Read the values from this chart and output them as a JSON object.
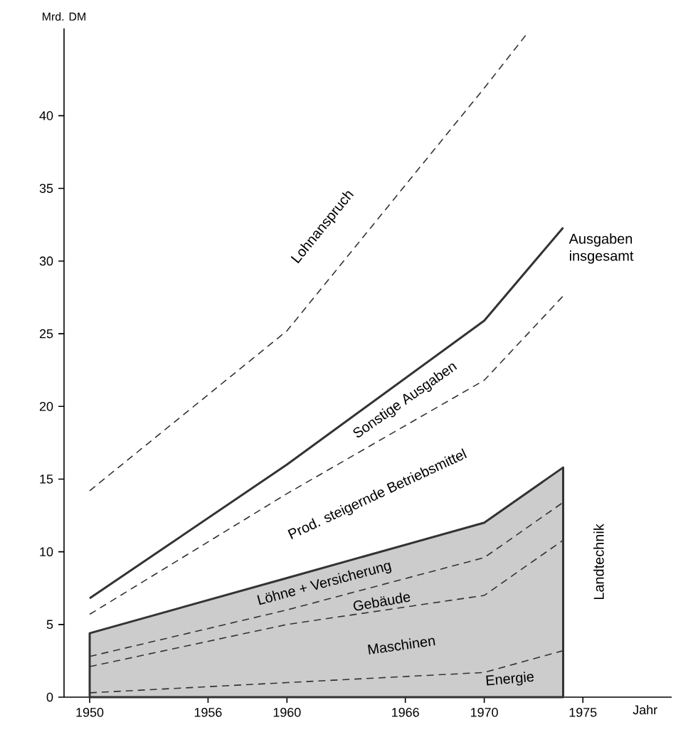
{
  "chart_data": {
    "type": "line",
    "xlabel": "Jahr",
    "ylabel": "Mrd. DM",
    "x": [
      1950,
      1960,
      1970,
      1974
    ],
    "xlim": [
      1948.7,
      1979.5
    ],
    "ylim": [
      0,
      46
    ],
    "xticks": [
      1950,
      1956,
      1960,
      1966,
      1970,
      1975
    ],
    "yticks": [
      0,
      5,
      10,
      15,
      20,
      25,
      30,
      35,
      40
    ],
    "series": [
      {
        "type": "area",
        "color": "#cccccc",
        "values": [
          4.4,
          8.2,
          12.0,
          15.8
        ],
        "line_style": "solid"
      },
      {
        "name": "Lohnanspruch",
        "color": "#333333",
        "x": [
          1950,
          1960,
          1970,
          1972.2
        ],
        "values": [
          14.2,
          25.2,
          41.9,
          45.7
        ],
        "line_style": "dashed"
      },
      {
        "name": "Ausgaben insgesamt",
        "color": "#333333",
        "values": [
          6.8,
          16.0,
          25.9,
          32.3
        ],
        "line_style": "solid"
      },
      {
        "color": "#333333",
        "values": [
          5.7,
          14.0,
          21.8,
          27.6
        ],
        "line_style": "dashed"
      },
      {
        "color": "#333333",
        "values": [
          2.8,
          6.0,
          9.6,
          13.4
        ],
        "line_style": "dashed"
      },
      {
        "color": "#333333",
        "values": [
          2.1,
          5.0,
          7.0,
          10.8
        ],
        "line_style": "dashed"
      },
      {
        "color": "#333333",
        "values": [
          0.3,
          1.0,
          1.7,
          3.2
        ],
        "line_style": "dashed"
      }
    ],
    "annotations": [
      "Sonstige Ausgaben",
      "Prod. steigernde Betriebsmittel",
      "Löhne + Versicherung",
      "Gebäude",
      "Maschinen",
      "Energie",
      "Landtechnik"
    ]
  }
}
